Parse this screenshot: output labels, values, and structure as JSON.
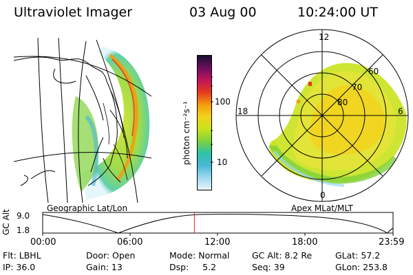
{
  "header": {
    "instrument": "Ultraviolet Imager",
    "date": "03 Aug 00",
    "time": "10:24:00 UT"
  },
  "left_panel": {
    "caption": "Geographic Lat/Lon"
  },
  "right_panel": {
    "caption": "Apex MLat/MLT",
    "mlt_labels": {
      "top": "12",
      "bottom": "0",
      "left": "18",
      "right": "6"
    },
    "mlat_labels": [
      "60",
      "70",
      "80"
    ]
  },
  "colorbar": {
    "unit_label": "photon cm⁻²s⁻¹",
    "scale": "log",
    "tick_labels": [
      "100",
      "10"
    ],
    "colors": [
      "#1a0f2e",
      "#6b0f5e",
      "#c0145a",
      "#e53a20",
      "#f59a0e",
      "#f3d21c",
      "#c9e21d",
      "#7fd13b",
      "#2ec3a5",
      "#49b7d6",
      "#9ed8ee",
      "#e8f4f8"
    ]
  },
  "altitude_strip": {
    "axis_label": "GC Alt",
    "y_ticks": [
      "9.0",
      "1.8"
    ],
    "x_ticks": [
      "00:00",
      "06:00",
      "12:00",
      "18:00",
      "23:59"
    ],
    "current_time_fraction": 0.433,
    "marker_color": "#e0201a"
  },
  "footer": {
    "row1": {
      "flt": "Flt: LBHL",
      "door": "Door: Open",
      "mode": "Mode: Normal",
      "gcalt": "GC Alt: 8.2 Re",
      "glat": "GLat:  57.2"
    },
    "row2": {
      "ip": "IP: 36.0",
      "gain": "Gain: 13",
      "dsp": "Dsp:     5.2",
      "seq": "Seq: 39",
      "glon": "GLon: 253.8"
    }
  }
}
